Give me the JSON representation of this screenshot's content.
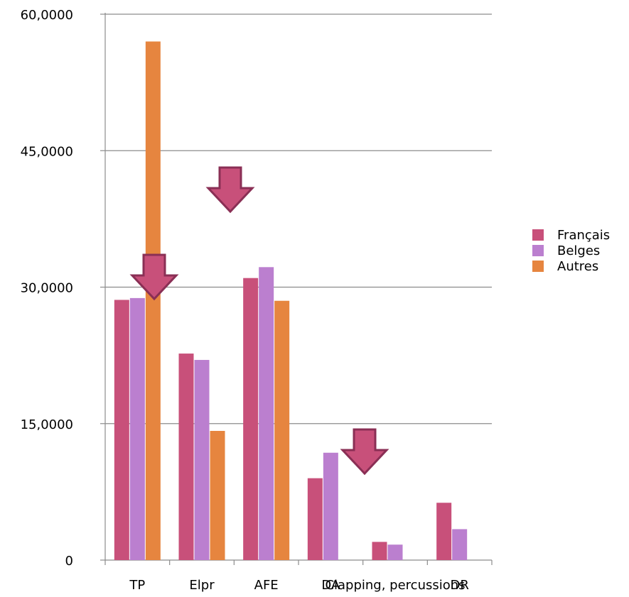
{
  "chart_data": {
    "type": "bar",
    "title": "",
    "xlabel": "",
    "ylabel": "",
    "ylim": [
      0,
      60
    ],
    "y_ticks": [
      0,
      15,
      30,
      45,
      60
    ],
    "y_tick_labels": [
      "0",
      "15,0000",
      "30,0000",
      "45,0000",
      "60,0000"
    ],
    "grid": true,
    "legend_position": "right",
    "categories": [
      "TP",
      "Elpr",
      "AFE",
      "DA",
      "Clapping, percussions",
      "DR"
    ],
    "series": [
      {
        "name": "Français",
        "color": "#c8507a",
        "values": [
          28.6,
          22.7,
          31.0,
          9.0,
          2.0,
          6.3
        ]
      },
      {
        "name": "Belges",
        "color": "#bb7fcf",
        "values": [
          28.8,
          22.0,
          32.2,
          11.8,
          1.7,
          3.4
        ]
      },
      {
        "name": "Autres",
        "color": "#e6853f",
        "values": [
          57.0,
          14.2,
          28.5,
          0,
          0,
          0
        ]
      }
    ],
    "annotations": [
      {
        "shape": "down-arrow",
        "near_category": "TP"
      },
      {
        "shape": "down-arrow",
        "near_category": "Elpr"
      },
      {
        "shape": "down-arrow",
        "near_category": "DA"
      }
    ]
  }
}
